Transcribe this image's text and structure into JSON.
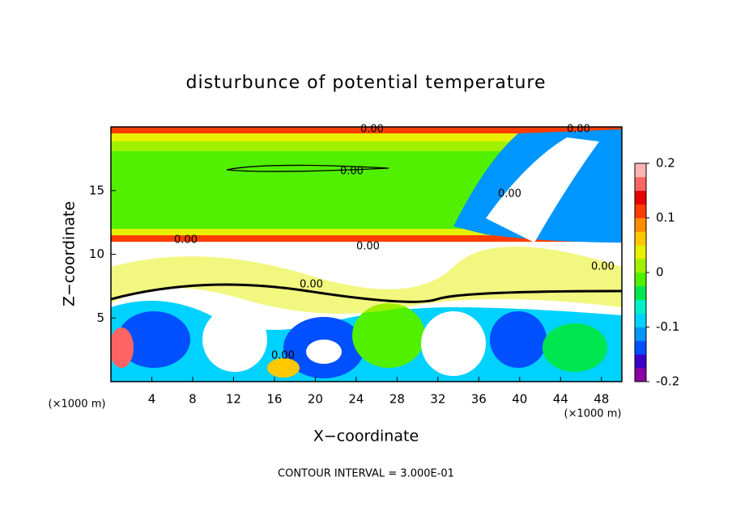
{
  "chart_data": {
    "type": "contour",
    "title": "disturbunce of potential temperature",
    "x_label": "X−coordinate",
    "y_label": "Z−coordinate",
    "x_unit": "(×1000 m)",
    "y_unit": "(×1000 m)",
    "footer": "CONTOUR INTERVAL = 3.000E-01",
    "contour_labels": [
      "0.00",
      "0.00",
      "0.00",
      "0.00",
      "0.00",
      "0.00",
      "0.00",
      "0.00",
      "0.00"
    ],
    "xlim": [
      0,
      50
    ],
    "ylim": [
      0,
      20
    ],
    "xticks": [
      4,
      8,
      12,
      16,
      20,
      24,
      28,
      32,
      36,
      40,
      44,
      48
    ],
    "yticks": [
      5,
      10,
      15
    ],
    "colorbar": {
      "lim": [
        -0.2,
        0.2
      ],
      "ticks": [
        0.2,
        0.1,
        0,
        -0.1,
        -0.2
      ],
      "colors": [
        "#8b00a0",
        "#3c00c8",
        "#0050ff",
        "#0096ff",
        "#00d2ff",
        "#00f0c8",
        "#00e650",
        "#50f000",
        "#a0f000",
        "#e6f000",
        "#ffc800",
        "#ff8c00",
        "#ff3c00",
        "#e60000",
        "#ff6464",
        "#ffb4b4"
      ]
    }
  }
}
